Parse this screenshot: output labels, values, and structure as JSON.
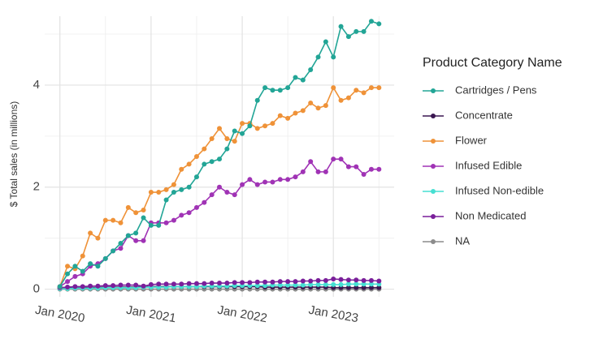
{
  "chart_data": {
    "type": "line",
    "y_label": "$ Total sales (in millions)",
    "legend_title": "Product Category Name",
    "x": [
      "2020-01",
      "2020-02",
      "2020-03",
      "2020-04",
      "2020-05",
      "2020-06",
      "2020-07",
      "2020-08",
      "2020-09",
      "2020-10",
      "2020-11",
      "2020-12",
      "2021-01",
      "2021-02",
      "2021-03",
      "2021-04",
      "2021-05",
      "2021-06",
      "2021-07",
      "2021-08",
      "2021-09",
      "2021-10",
      "2021-11",
      "2021-12",
      "2022-01",
      "2022-02",
      "2022-03",
      "2022-04",
      "2022-05",
      "2022-06",
      "2022-07",
      "2022-08",
      "2022-09",
      "2022-10",
      "2022-11",
      "2022-12",
      "2023-01",
      "2023-02",
      "2023-03",
      "2023-04",
      "2023-05",
      "2023-06",
      "2023-07"
    ],
    "xlim": [
      "2019-11",
      "2023-09"
    ],
    "xticks": [
      {
        "value": "2020-01",
        "label": "Jan 2020"
      },
      {
        "value": "2021-01",
        "label": "Jan 2021"
      },
      {
        "value": "2022-01",
        "label": "Jan 2022"
      },
      {
        "value": "2023-01",
        "label": "Jan 2023"
      }
    ],
    "x_minor_grid": [
      "2020-07",
      "2021-07",
      "2022-07",
      "2023-07"
    ],
    "ylim": [
      -0.15,
      5.35
    ],
    "yticks": [
      0,
      2,
      4
    ],
    "y_minor_grid": [
      1,
      3,
      5
    ],
    "grid": true,
    "legend": "right",
    "series": [
      {
        "name": "NA",
        "color": "#8c8c8c",
        "values": [
          0,
          0,
          0,
          0,
          0,
          0,
          0,
          0,
          0,
          0,
          0,
          0,
          0,
          0,
          0,
          0,
          0,
          0,
          0,
          0,
          0,
          0,
          0,
          0,
          0,
          0,
          0,
          0,
          0,
          0,
          0,
          0,
          0,
          0,
          0,
          0,
          0,
          0,
          0,
          0,
          0,
          0,
          0
        ]
      },
      {
        "name": "Concentrate",
        "color": "#3a1650",
        "values": [
          0.02,
          0.02,
          0.03,
          0.03,
          0.03,
          0.03,
          0.04,
          0.04,
          0.04,
          0.04,
          0.04,
          0.05,
          0.05,
          0.05,
          0.05,
          0.05,
          0.05,
          0.05,
          0.05,
          0.05,
          0.05,
          0.05,
          0.05,
          0.05,
          0.05,
          0.05,
          0.05,
          0.04,
          0.04,
          0.04,
          0.04,
          0.04,
          0.04,
          0.04,
          0.04,
          0.04,
          0.03,
          0.03,
          0.03,
          0.03,
          0.03,
          0.03,
          0.03
        ]
      },
      {
        "name": "Infused Non-edible",
        "color": "#46dfd2",
        "values": [
          0.01,
          0.01,
          0.02,
          0.02,
          0.02,
          0.02,
          0.03,
          0.03,
          0.03,
          0.03,
          0.03,
          0.04,
          0.04,
          0.04,
          0.04,
          0.05,
          0.05,
          0.05,
          0.05,
          0.06,
          0.06,
          0.06,
          0.06,
          0.07,
          0.07,
          0.07,
          0.07,
          0.07,
          0.08,
          0.08,
          0.08,
          0.08,
          0.08,
          0.09,
          0.09,
          0.09,
          0.09,
          0.09,
          0.1,
          0.1,
          0.1,
          0.1,
          0.1
        ]
      },
      {
        "name": "Non Medicated",
        "color": "#7a1f9a",
        "values": [
          0.03,
          0.04,
          0.05,
          0.05,
          0.06,
          0.06,
          0.07,
          0.07,
          0.08,
          0.08,
          0.08,
          0.06,
          0.09,
          0.1,
          0.1,
          0.1,
          0.1,
          0.11,
          0.11,
          0.11,
          0.12,
          0.12,
          0.12,
          0.13,
          0.13,
          0.13,
          0.14,
          0.14,
          0.14,
          0.15,
          0.15,
          0.15,
          0.16,
          0.16,
          0.17,
          0.17,
          0.2,
          0.19,
          0.18,
          0.18,
          0.17,
          0.17,
          0.16
        ]
      },
      {
        "name": "Infused Edible",
        "color": "#a033b5",
        "values": [
          0.05,
          0.15,
          0.25,
          0.3,
          0.45,
          0.5,
          0.6,
          0.75,
          0.8,
          1.05,
          0.95,
          0.95,
          1.3,
          1.3,
          1.3,
          1.35,
          1.45,
          1.5,
          1.6,
          1.7,
          1.85,
          2.0,
          1.9,
          1.85,
          2.05,
          2.15,
          2.05,
          2.1,
          2.1,
          2.15,
          2.15,
          2.2,
          2.3,
          2.5,
          2.3,
          2.3,
          2.55,
          2.55,
          2.4,
          2.4,
          2.25,
          2.35,
          2.35
        ]
      },
      {
        "name": "Flower",
        "color": "#ef9238",
        "values": [
          0.05,
          0.45,
          0.4,
          0.65,
          1.1,
          1.0,
          1.35,
          1.35,
          1.3,
          1.6,
          1.5,
          1.55,
          1.9,
          1.9,
          1.95,
          2.05,
          2.35,
          2.45,
          2.6,
          2.75,
          2.95,
          3.15,
          2.95,
          2.9,
          3.25,
          3.25,
          3.15,
          3.2,
          3.25,
          3.4,
          3.35,
          3.45,
          3.5,
          3.65,
          3.55,
          3.6,
          3.95,
          3.7,
          3.75,
          3.9,
          3.85,
          3.95,
          3.95
        ]
      },
      {
        "name": "Cartridges / Pens",
        "color": "#22a596",
        "values": [
          0.05,
          0.3,
          0.45,
          0.35,
          0.5,
          0.45,
          0.6,
          0.75,
          0.9,
          1.05,
          1.1,
          1.4,
          1.25,
          1.25,
          1.75,
          1.9,
          1.95,
          2.0,
          2.2,
          2.45,
          2.5,
          2.55,
          2.75,
          3.1,
          3.05,
          3.2,
          3.7,
          3.95,
          3.9,
          3.9,
          3.95,
          4.15,
          4.1,
          4.3,
          4.55,
          4.85,
          4.55,
          5.15,
          4.95,
          5.05,
          5.05,
          5.25,
          5.2
        ]
      }
    ],
    "legend_order": [
      6,
      1,
      5,
      4,
      2,
      3,
      0
    ]
  }
}
